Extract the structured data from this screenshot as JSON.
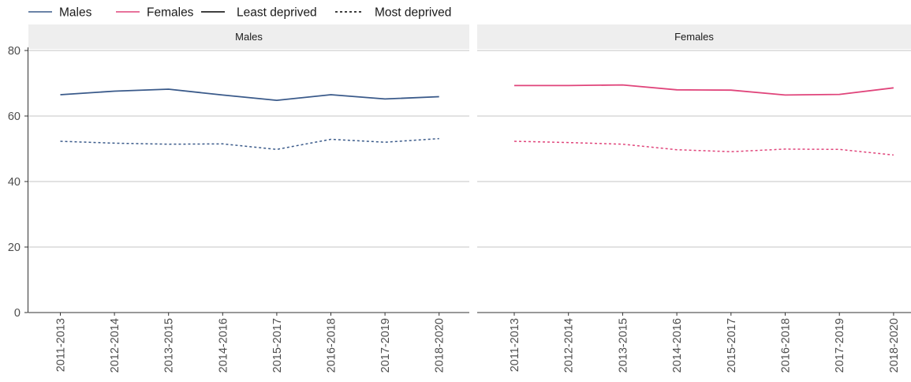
{
  "legend": {
    "items": [
      {
        "label": "Males",
        "color": "#3a5a8a",
        "dash": "solid"
      },
      {
        "label": "Females",
        "color": "#e0457b",
        "dash": "solid"
      },
      {
        "label": "Least deprived",
        "color": "#000000",
        "dash": "solid"
      },
      {
        "label": "Most deprived",
        "color": "#000000",
        "dash": "dotted"
      }
    ]
  },
  "chart_data": {
    "type": "line",
    "ylim": [
      0,
      80
    ],
    "yticks": [
      "0",
      "20",
      "40",
      "60",
      "80"
    ],
    "grid": true,
    "legend_position": "top-left",
    "categories": [
      "2011-2013",
      "2012-2014",
      "2013-2015",
      "2014-2016",
      "2015-2017",
      "2016-2018",
      "2017-2019",
      "2018-2020"
    ],
    "panels": [
      {
        "strip": "Males",
        "color": "#3a5a8a",
        "series": [
          {
            "name": "Least deprived",
            "dash": "solid",
            "values": [
              66.5,
              67.6,
              68.2,
              66.4,
              64.8,
              66.5,
              65.2,
              65.9
            ]
          },
          {
            "name": "Most deprived",
            "dash": "dotted",
            "values": [
              52.3,
              51.7,
              51.4,
              51.5,
              49.8,
              52.9,
              52.0,
              53.1
            ]
          }
        ]
      },
      {
        "strip": "Females",
        "color": "#e0457b",
        "series": [
          {
            "name": "Least deprived",
            "dash": "solid",
            "values": [
              69.3,
              69.3,
              69.5,
              68.0,
              67.9,
              66.4,
              66.6,
              68.6
            ]
          },
          {
            "name": "Most deprived",
            "dash": "dotted",
            "values": [
              52.3,
              51.9,
              51.4,
              49.7,
              49.1,
              49.9,
              49.8,
              48.1
            ]
          }
        ]
      }
    ]
  }
}
